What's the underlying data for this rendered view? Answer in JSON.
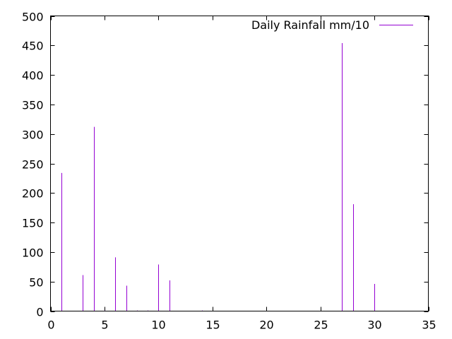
{
  "chart_data": {
    "type": "impulse",
    "title": "",
    "xlabel": "",
    "ylabel": "",
    "xlim": [
      0,
      35
    ],
    "ylim": [
      0,
      500
    ],
    "xticks": [
      0,
      5,
      10,
      15,
      20,
      25,
      30,
      35
    ],
    "yticks": [
      0,
      50,
      100,
      150,
      200,
      250,
      300,
      350,
      400,
      450,
      500
    ],
    "grid": false,
    "legend_position": "top-right",
    "series": [
      {
        "name": "Daily Rainfall mm/10",
        "color": "#9400d3",
        "points": [
          {
            "x": 1,
            "y": 234
          },
          {
            "x": 2,
            "y": 0
          },
          {
            "x": 3,
            "y": 61
          },
          {
            "x": 4,
            "y": 312
          },
          {
            "x": 5,
            "y": 1
          },
          {
            "x": 6,
            "y": 91
          },
          {
            "x": 7,
            "y": 43
          },
          {
            "x": 8,
            "y": 1
          },
          {
            "x": 9,
            "y": 1
          },
          {
            "x": 10,
            "y": 79
          },
          {
            "x": 11,
            "y": 52
          },
          {
            "x": 12,
            "y": 0
          },
          {
            "x": 13,
            "y": 0
          },
          {
            "x": 14,
            "y": 1
          },
          {
            "x": 15,
            "y": 0
          },
          {
            "x": 16,
            "y": 0
          },
          {
            "x": 17,
            "y": 0
          },
          {
            "x": 18,
            "y": 0
          },
          {
            "x": 19,
            "y": 0
          },
          {
            "x": 20,
            "y": 0
          },
          {
            "x": 21,
            "y": 0
          },
          {
            "x": 22,
            "y": 0
          },
          {
            "x": 23,
            "y": 0
          },
          {
            "x": 24,
            "y": 0
          },
          {
            "x": 25,
            "y": 0
          },
          {
            "x": 26,
            "y": 0
          },
          {
            "x": 27,
            "y": 454
          },
          {
            "x": 28,
            "y": 181
          },
          {
            "x": 29,
            "y": 0
          },
          {
            "x": 30,
            "y": 46
          },
          {
            "x": 31,
            "y": 0
          }
        ]
      }
    ]
  }
}
